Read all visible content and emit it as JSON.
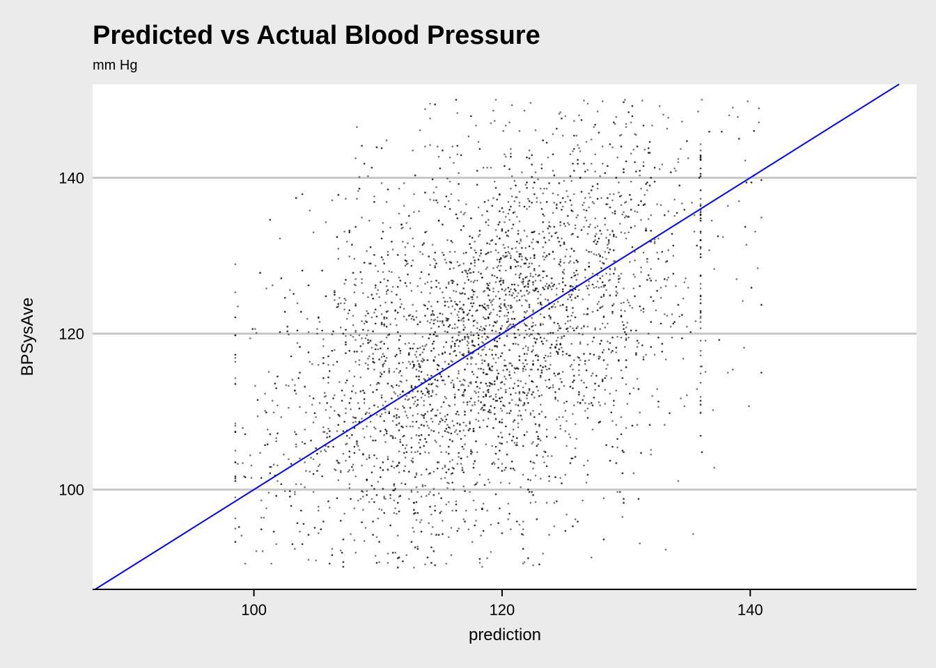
{
  "chart_data": {
    "type": "scatter",
    "title": "Predicted vs Actual Blood Pressure",
    "subtitle": "mm Hg",
    "xlabel": "prediction",
    "ylabel": "BPSysAve",
    "xlim": [
      87,
      153.4
    ],
    "ylim": [
      87.2,
      152
    ],
    "x_ticks": [
      100,
      120,
      140
    ],
    "y_ticks": [
      100,
      120,
      140
    ],
    "x_tick_labels": [
      "100",
      "120",
      "140"
    ],
    "y_tick_labels": [
      "100",
      "120",
      "140"
    ],
    "grid": "horizontal major lines",
    "reference_line": {
      "type": "identity",
      "slope": 1,
      "intercept": 0,
      "color": "#0000ff"
    },
    "point_color": "#000000",
    "point_opacity": 0.55,
    "points_summary": {
      "approximate_count": 4800,
      "x_range": [
        98.5,
        141
      ],
      "y_range": [
        90,
        150
      ],
      "note": "dense cloud of individual observations; representative sample listed"
    },
    "points": [
      [
        98.7,
        123.5
      ],
      [
        101,
        125.8
      ],
      [
        101.5,
        126.2
      ],
      [
        99.3,
        90.5
      ],
      [
        100.2,
        92.1
      ],
      [
        102.1,
        132.2
      ],
      [
        104.5,
        135.8
      ],
      [
        106.3,
        137.1
      ],
      [
        107.4,
        137.3
      ],
      [
        108.3,
        146.5
      ],
      [
        109.2,
        140.2
      ],
      [
        110.7,
        136.9
      ],
      [
        112.8,
        143.5
      ],
      [
        113.4,
        146.1
      ],
      [
        114.2,
        149.5
      ],
      [
        115.8,
        142.6
      ],
      [
        116.4,
        148.3
      ],
      [
        117.3,
        145.3
      ],
      [
        118.8,
        141.3
      ],
      [
        119.5,
        150.0
      ],
      [
        120.8,
        149.3
      ],
      [
        122.3,
        149.6
      ],
      [
        124.7,
        148.4
      ],
      [
        126.6,
        149.9
      ],
      [
        128.1,
        149.8
      ],
      [
        129.9,
        150.0
      ],
      [
        131.3,
        149.9
      ],
      [
        132.7,
        149.2
      ],
      [
        134.5,
        147.2
      ],
      [
        136.1,
        150.0
      ],
      [
        140.7,
        148.9
      ],
      [
        136.9,
        134.5
      ],
      [
        137.1,
        128.3
      ],
      [
        138.9,
        127.0
      ],
      [
        139.4,
        124.2
      ],
      [
        137.8,
        132.4
      ],
      [
        136.4,
        119.1
      ],
      [
        137.0,
        110.2
      ],
      [
        139.9,
        110.7
      ],
      [
        137.1,
        102.8
      ],
      [
        135.4,
        94.3
      ],
      [
        133.2,
        92.3
      ],
      [
        127.2,
        91.3
      ],
      [
        121.8,
        90.7
      ],
      [
        115.5,
        90.5
      ],
      [
        110.8,
        90.6
      ],
      [
        105.0,
        90.9
      ],
      [
        101.4,
        90.5
      ],
      [
        113.5,
        116.5
      ],
      [
        114.8,
        113.2
      ],
      [
        116.2,
        118.7
      ],
      [
        117.9,
        112.4
      ],
      [
        118.7,
        121.9
      ],
      [
        119.6,
        115.3
      ],
      [
        121.2,
        124.8
      ],
      [
        122.1,
        118.2
      ],
      [
        123.6,
        126.4
      ],
      [
        124.3,
        111.6
      ],
      [
        125.5,
        129.3
      ],
      [
        126.4,
        120.7
      ],
      [
        127.7,
        127.5
      ],
      [
        128.9,
        133.2
      ],
      [
        130.1,
        121.4
      ],
      [
        131.2,
        138.6
      ],
      [
        132.8,
        125.9
      ],
      [
        133.9,
        141.2
      ],
      [
        134.6,
        116.8
      ],
      [
        129.3,
        105.4
      ],
      [
        126.8,
        100.9
      ],
      [
        122.5,
        102.7
      ],
      [
        118.5,
        98.2
      ],
      [
        115.1,
        101.4
      ],
      [
        111.7,
        104.9
      ],
      [
        108.8,
        107.8
      ],
      [
        106.2,
        110.6
      ],
      [
        104.1,
        103.5
      ],
      [
        102.5,
        99.8
      ],
      [
        100.6,
        96.4
      ],
      [
        99.2,
        101.7
      ],
      [
        103.3,
        112.7
      ],
      [
        105.6,
        118.4
      ],
      [
        107.3,
        123.1
      ],
      [
        108.1,
        126.3
      ],
      [
        110.4,
        129.5
      ],
      [
        112.0,
        131.8
      ],
      [
        114.0,
        126.6
      ],
      [
        115.6,
        124.1
      ],
      [
        117.5,
        127.8
      ],
      [
        119.1,
        131.9
      ],
      [
        120.5,
        135.4
      ],
      [
        121.9,
        139.1
      ],
      [
        123.2,
        141.7
      ],
      [
        124.9,
        136.3
      ],
      [
        126.1,
        144.2
      ],
      [
        127.5,
        140.8
      ],
      [
        129.0,
        137.9
      ],
      [
        130.6,
        143.6
      ],
      [
        132.0,
        135.2
      ],
      [
        133.4,
        130.7
      ],
      [
        134.8,
        127.1
      ],
      [
        135.6,
        121.6
      ],
      [
        132.5,
        112.9
      ],
      [
        130.9,
        108.3
      ],
      [
        128.4,
        114.6
      ],
      [
        125.1,
        107.5
      ],
      [
        121.4,
        110.1
      ],
      [
        117.0,
        105.8
      ],
      [
        113.9,
        108.7
      ],
      [
        110.1,
        113.6
      ],
      [
        107.6,
        102.3
      ],
      [
        105.2,
        97.8
      ],
      [
        103.7,
        94.6
      ],
      [
        101.8,
        106.2
      ],
      [
        100.3,
        109.4
      ],
      [
        99.8,
        103.1
      ]
    ]
  }
}
